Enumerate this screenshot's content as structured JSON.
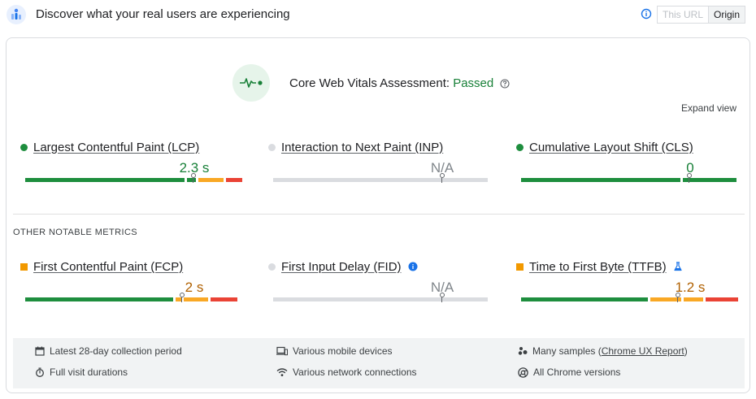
{
  "header": {
    "title": "Discover what your real users are experiencing",
    "toggle": {
      "this_url": "This URL",
      "origin": "Origin"
    },
    "icons": {
      "app": "crux-dashboard-icon",
      "info": "info-icon"
    }
  },
  "assessment": {
    "label": "Core Web Vitals Assessment: ",
    "status": "Passed",
    "icons": {
      "main": "pulse-icon",
      "help": "help-icon"
    }
  },
  "expand_view": "Expand view",
  "core_metrics": [
    {
      "label": "Largest Contentful Paint (LCP)",
      "value": "2.3 s",
      "status_color": "#1e8e3e"
    },
    {
      "label": "Interaction to Next Paint (INP)",
      "value": "N/A",
      "status_color": "#bdc1c6"
    },
    {
      "label": "Cumulative Layout Shift (CLS)",
      "value": "0",
      "status_color": "#1e8e3e"
    }
  ],
  "other_section_title": "OTHER NOTABLE METRICS",
  "other_metrics": [
    {
      "label": "First Contentful Paint (FCP)",
      "value": "2 s",
      "status_color": "#e8a300"
    },
    {
      "label": "First Input Delay (FID)",
      "value": "N/A",
      "status_color": "#bdc1c6",
      "after_icon": "info-filled-icon"
    },
    {
      "label": "Time to First Byte (TTFB)",
      "value": "1.2 s",
      "status_color": "#e8a300",
      "after_icon": "flask-icon"
    }
  ],
  "colors": {
    "good": "#1e8e3e",
    "needs_improvement": "#f9a825",
    "poor": "#ea4335",
    "na": "#dadce0",
    "text_green": "#188038",
    "text_orange": "#b06000",
    "text_gray": "#80868b"
  },
  "info": {
    "period": "Latest 28-day collection period",
    "devices": "Various mobile devices",
    "samples_prefix": "Many samples (",
    "samples_link": "Chrome UX Report",
    "samples_suffix": ")",
    "durations": "Full visit durations",
    "network": "Various network connections",
    "versions": "All Chrome versions",
    "icons": [
      "calendar-icon",
      "devices-icon",
      "samples-icon",
      "stopwatch-icon",
      "wifi-icon",
      "chrome-icon"
    ]
  }
}
